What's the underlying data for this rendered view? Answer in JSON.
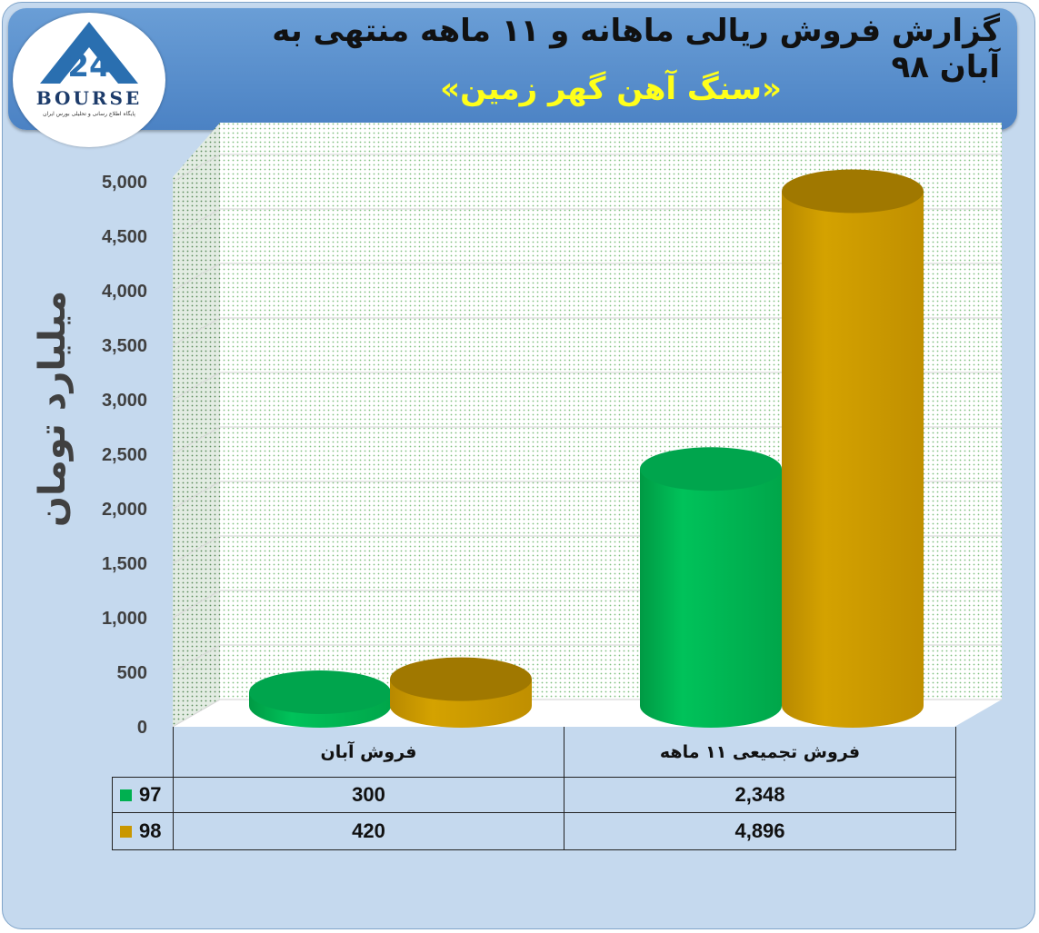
{
  "header": {
    "title": "گزارش فروش ریالی ماهانه و ۱۱ ماهه منتهی به آبان ۹۸",
    "subtitle": "«سنگ آهن گهر زمین»"
  },
  "logo": {
    "text": "BOURSE",
    "tagline": "پایگاه اطلاع رسانی و تحلیلی بورس ایران"
  },
  "colors": {
    "series97": "#00b050",
    "series98": "#c99700",
    "frame": "#c5d9ee",
    "banner": "#4f86c6",
    "subtitle": "#ffff1a"
  },
  "chart_data": {
    "type": "bar",
    "ylabel": "میلیارد تومان",
    "ylim": [
      0,
      5000
    ],
    "yticks": [
      "0",
      "500",
      "1,000",
      "1,500",
      "2,000",
      "2,500",
      "3,000",
      "3,500",
      "4,000",
      "4,500",
      "5,000"
    ],
    "categories": [
      "فروش آبان",
      "فروش تجمیعی ۱۱ ماهه"
    ],
    "series": [
      {
        "name": "97",
        "values": [
          300,
          2348
        ],
        "labels": [
          "300",
          "2,348"
        ]
      },
      {
        "name": "98",
        "values": [
          420,
          4896
        ],
        "labels": [
          "420",
          "4,896"
        ]
      }
    ],
    "grid": true,
    "legend": "data-table"
  }
}
